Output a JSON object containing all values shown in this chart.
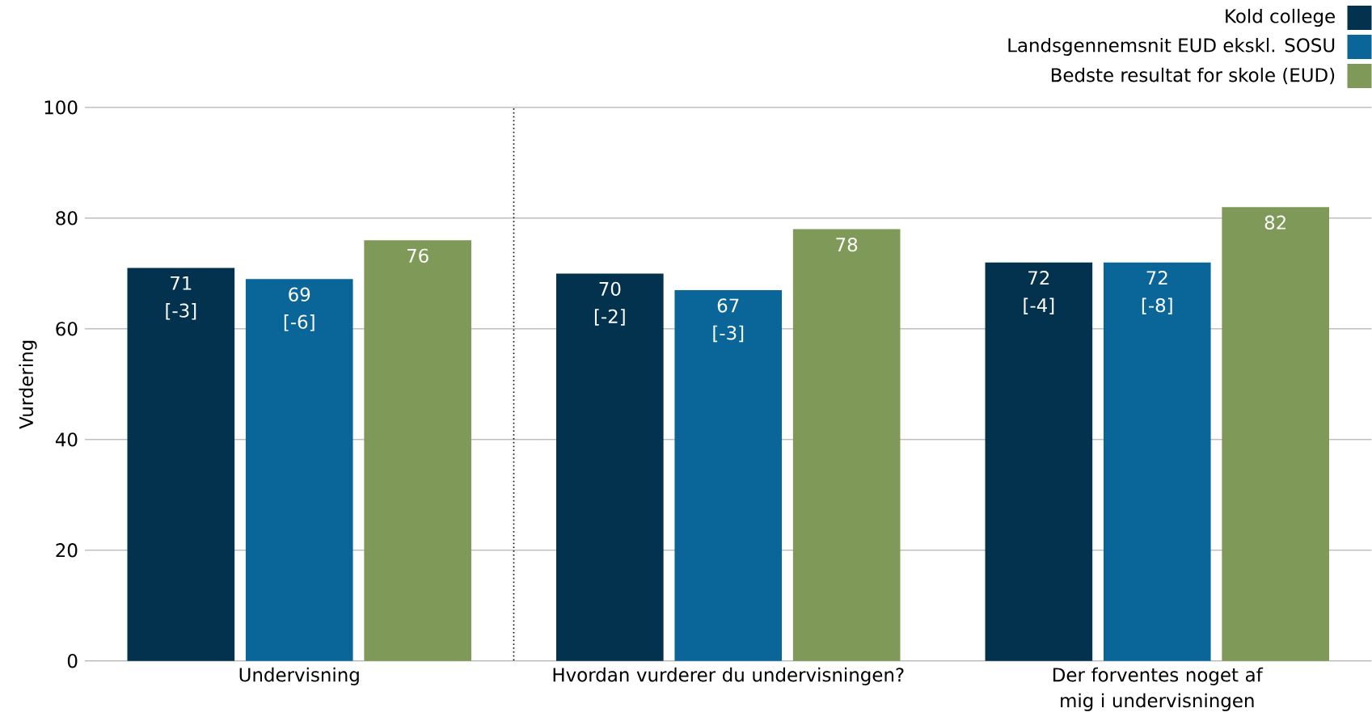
{
  "chart_data": {
    "type": "bar",
    "ylabel": "Vurdering",
    "categories": [
      "Undervisning",
      "Hvordan vurderer du undervisningen?",
      "Der forventes noget af mig i undervisningen"
    ],
    "series": [
      {
        "name": "Kold college",
        "color": "#03324f",
        "values": [
          71,
          70,
          72
        ],
        "value_labels": [
          "71 [-3]",
          "70 [-2]",
          "72 [-4]"
        ]
      },
      {
        "name": "Landsgennemsnit EUD ekskl. SOSU",
        "color": "#0a6699",
        "values": [
          69,
          67,
          72
        ],
        "value_labels": [
          "69 [-6]",
          "67 [-3]",
          "72 [-8]"
        ]
      },
      {
        "name": "Bedste resultat for skole (EUD)",
        "color": "#7f9a58",
        "values": [
          76,
          78,
          82
        ],
        "value_labels": [
          "76",
          "78",
          "82"
        ]
      }
    ],
    "ylim": [
      0,
      100
    ],
    "yticks": [
      0,
      20,
      40,
      60,
      80,
      100
    ],
    "grid": "y",
    "legend": "top right"
  }
}
